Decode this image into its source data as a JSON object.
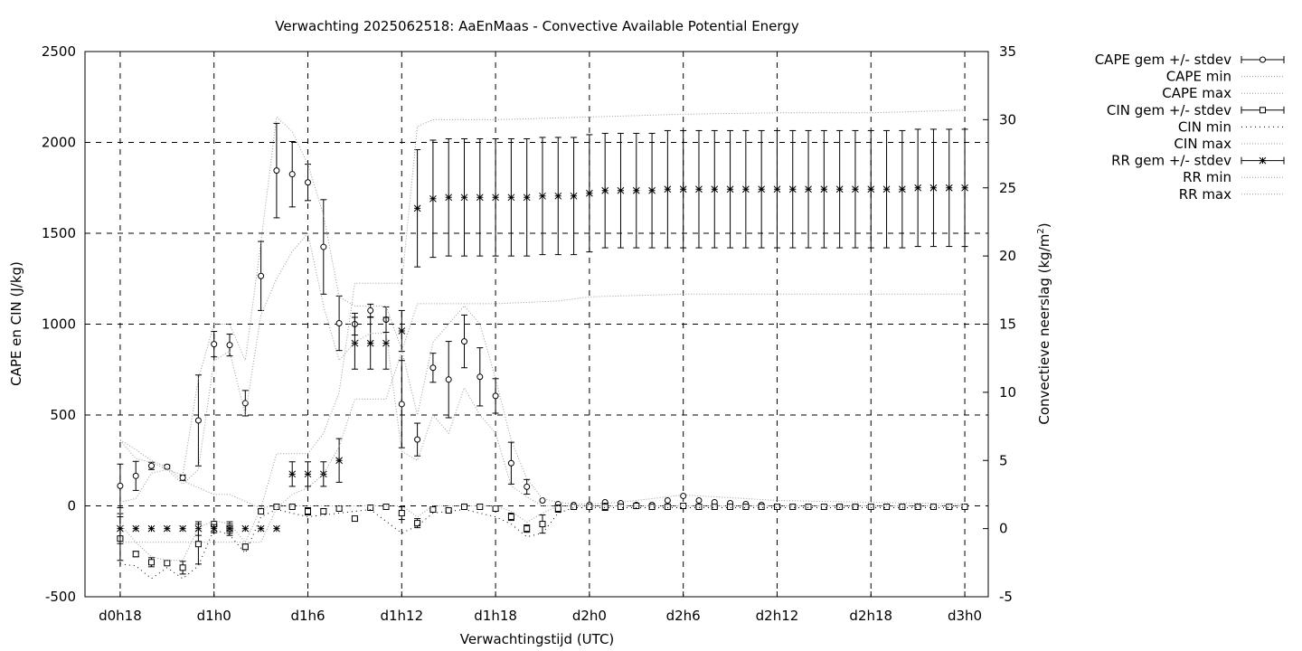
{
  "chart_data": {
    "type": "scatter",
    "title": "Verwachting 2025062518: AaEnMaas - Convective Available Potential Energy",
    "xlabel": "Verwachtingstijd (UTC)",
    "ylabel": "CAPE en CIN (J/kg)",
    "y2label_main": "Convectieve neerslag (kg/m",
    "y2label_sup": "2",
    "y2label_end": ")",
    "x_unit": "hours since d0h18",
    "xlim": [
      -2.25,
      55.5
    ],
    "ylim": [
      -500,
      2500
    ],
    "y2lim": [
      -5,
      35
    ],
    "grid": true,
    "legend_position": "outside-right",
    "x_ticks": [
      {
        "x": 0,
        "label": "d0h18"
      },
      {
        "x": 6,
        "label": "d1h0"
      },
      {
        "x": 12,
        "label": "d1h6"
      },
      {
        "x": 18,
        "label": "d1h12"
      },
      {
        "x": 24,
        "label": "d1h18"
      },
      {
        "x": 30,
        "label": "d2h0"
      },
      {
        "x": 36,
        "label": "d2h6"
      },
      {
        "x": 42,
        "label": "d2h12"
      },
      {
        "x": 48,
        "label": "d2h18"
      },
      {
        "x": 54,
        "label": "d3h0"
      }
    ],
    "y_ticks": [
      "-500",
      "0",
      "500",
      "1000",
      "1500",
      "2000",
      "2500"
    ],
    "y2_ticks": [
      "-5",
      "0",
      "5",
      "10",
      "15",
      "20",
      "25",
      "30",
      "35"
    ],
    "legend": [
      {
        "label": "CAPE gem +/- stdev",
        "style": "errbar-circle"
      },
      {
        "label": "CAPE min",
        "style": "dotted"
      },
      {
        "label": "CAPE max",
        "style": "dotted"
      },
      {
        "label": "CIN gem +/- stdev",
        "style": "errbar-square"
      },
      {
        "label": "CIN min",
        "style": "dotted-sparse"
      },
      {
        "label": "CIN max",
        "style": "dotted"
      },
      {
        "label": "RR gem +/- stdev",
        "style": "errbar-star"
      },
      {
        "label": "RR min",
        "style": "dotted"
      },
      {
        "label": "RR max",
        "style": "dotted"
      }
    ],
    "series": [
      {
        "name": "CAPE gem +/- stdev",
        "axis": "y",
        "marker": "circle",
        "x": [
          0,
          1,
          2,
          3,
          4,
          5,
          6,
          7,
          8,
          9,
          10,
          11,
          12,
          13,
          14,
          15,
          16,
          17,
          18,
          19,
          20,
          21,
          22,
          23,
          24,
          25,
          26,
          27,
          28,
          29,
          30,
          31,
          32,
          33,
          34,
          35,
          36,
          37,
          38,
          39,
          40,
          41
        ],
        "y": [
          110,
          165,
          220,
          215,
          155,
          470,
          890,
          885,
          565,
          1265,
          1845,
          1825,
          1780,
          1425,
          1005,
          1000,
          1075,
          1025,
          560,
          365,
          760,
          695,
          905,
          710,
          605,
          235,
          105,
          30,
          10,
          5,
          5,
          20,
          15,
          5,
          5,
          30,
          55,
          30,
          20,
          15,
          10,
          5
        ],
        "err": [
          120,
          80,
          20,
          10,
          15,
          250,
          70,
          60,
          70,
          190,
          260,
          180,
          100,
          260,
          150,
          60,
          35,
          70,
          240,
          90,
          80,
          210,
          145,
          160,
          95,
          115,
          40,
          0,
          0,
          0,
          0,
          0,
          0,
          0,
          0,
          0,
          0,
          0,
          0,
          0,
          0,
          0
        ]
      },
      {
        "name": "CIN gem +/- stdev",
        "axis": "y",
        "marker": "square",
        "x": [
          0,
          1,
          2,
          3,
          4,
          5,
          6,
          7,
          8,
          9,
          10,
          11,
          12,
          13,
          14,
          15,
          16,
          17,
          18,
          19,
          20,
          21,
          22,
          23,
          24,
          25,
          26,
          27,
          28,
          29,
          30,
          31,
          32,
          33,
          34,
          35,
          36,
          37,
          38,
          39,
          40,
          41,
          42,
          43,
          44,
          45,
          46,
          47,
          48,
          49,
          50,
          51,
          52,
          53,
          54
        ],
        "y": [
          -180,
          -265,
          -310,
          -315,
          -340,
          -210,
          -100,
          -125,
          -225,
          -30,
          -5,
          -5,
          -30,
          -30,
          -15,
          -70,
          -10,
          -5,
          -40,
          -95,
          -20,
          -25,
          -5,
          -5,
          -15,
          -60,
          -125,
          -100,
          -15,
          -5,
          -5,
          -5,
          -5,
          0,
          -5,
          -5,
          0,
          -5,
          -5,
          -5,
          -5,
          -5,
          -5,
          -5,
          -5,
          -5,
          -5,
          -5,
          -5,
          -5,
          -5,
          -5,
          -5,
          -5,
          -5
        ],
        "err": [
          120,
          15,
          25,
          10,
          35,
          110,
          15,
          25,
          15,
          10,
          0,
          0,
          20,
          15,
          10,
          5,
          0,
          0,
          35,
          25,
          5,
          10,
          0,
          0,
          10,
          20,
          20,
          50,
          20,
          0,
          0,
          20,
          5,
          0,
          0,
          0,
          0,
          0,
          0,
          0,
          0,
          0,
          0,
          0,
          0,
          0,
          0,
          0,
          0,
          0,
          0,
          0,
          0,
          0,
          0
        ]
      },
      {
        "name": "RR gem +/- stdev",
        "axis": "y2",
        "marker": "star",
        "x": [
          0,
          1,
          2,
          3,
          4,
          5,
          6,
          7,
          8,
          9,
          10,
          11,
          12,
          13,
          14,
          15,
          16,
          17,
          18,
          19,
          20,
          21,
          22,
          23,
          24,
          25,
          26,
          27,
          28,
          29,
          30,
          31,
          32,
          33,
          34,
          35,
          36,
          37,
          38,
          39,
          40,
          41,
          42,
          43,
          44,
          45,
          46,
          47,
          48,
          49,
          50,
          51,
          52,
          53,
          54
        ],
        "y": [
          0,
          0,
          0,
          0,
          0,
          0,
          0,
          0,
          0,
          0,
          0,
          4.0,
          4.0,
          4.0,
          5.0,
          13.6,
          13.6,
          13.6,
          14.5,
          23.5,
          24.2,
          24.3,
          24.3,
          24.3,
          24.3,
          24.3,
          24.3,
          24.4,
          24.4,
          24.4,
          24.6,
          24.8,
          24.8,
          24.8,
          24.8,
          24.9,
          24.9,
          24.9,
          24.9,
          24.9,
          24.9,
          24.9,
          24.9,
          24.9,
          24.9,
          24.9,
          24.9,
          24.9,
          24.9,
          24.9,
          24.9,
          25.0,
          25.0,
          25.0,
          25.0
        ],
        "err": [
          1.1,
          0,
          0,
          0,
          0,
          0.5,
          0.3,
          0.5,
          0,
          0,
          0,
          0.9,
          0.9,
          0.9,
          1.6,
          1.9,
          1.9,
          1.9,
          1.5,
          4.3,
          4.3,
          4.3,
          4.3,
          4.3,
          4.3,
          4.3,
          4.3,
          4.3,
          4.3,
          4.3,
          4.3,
          4.2,
          4.2,
          4.2,
          4.2,
          4.3,
          4.3,
          4.3,
          4.3,
          4.3,
          4.3,
          4.3,
          4.3,
          4.3,
          4.3,
          4.3,
          4.3,
          4.3,
          4.3,
          4.3,
          4.3,
          4.3,
          4.3,
          4.3,
          4.3
        ]
      },
      {
        "name": "CAPE max",
        "axis": "y",
        "line": "dotted",
        "x": [
          0,
          1,
          2,
          3,
          4,
          5,
          6,
          7,
          8,
          9,
          10,
          11,
          12,
          13,
          14,
          15,
          16,
          17,
          18,
          19,
          20,
          21,
          22,
          23,
          24,
          25,
          26,
          27,
          28,
          29,
          30,
          32,
          36,
          42,
          48,
          54
        ],
        "y": [
          360,
          260,
          240,
          200,
          170,
          700,
          1000,
          1000,
          800,
          1450,
          2140,
          2060,
          1880,
          1600,
          1150,
          1100,
          1100,
          1100,
          860,
          500,
          900,
          1000,
          1100,
          1000,
          700,
          360,
          150,
          40,
          20,
          10,
          10,
          20,
          60,
          30,
          20,
          10
        ]
      },
      {
        "name": "CAPE min",
        "axis": "y",
        "line": "dotted",
        "x": [
          0,
          1,
          2,
          3,
          4,
          5,
          6,
          7,
          8,
          9,
          10,
          11,
          12,
          13,
          14,
          15,
          16,
          17,
          18,
          19,
          20,
          21,
          22,
          23,
          24,
          25,
          26,
          27,
          28,
          30,
          36,
          42,
          48,
          54
        ],
        "y": [
          20,
          40,
          180,
          200,
          120,
          200,
          800,
          850,
          500,
          1050,
          1250,
          1400,
          1500,
          1100,
          800,
          900,
          950,
          950,
          300,
          250,
          500,
          400,
          650,
          500,
          400,
          110,
          50,
          0,
          0,
          0,
          0,
          0,
          0,
          0
        ]
      },
      {
        "name": "CIN min",
        "axis": "y",
        "line": "dotted-sparse",
        "x": [
          0,
          1,
          2,
          3,
          4,
          5,
          6,
          7,
          8,
          9,
          10,
          12,
          14,
          16,
          18,
          19,
          20,
          22,
          24,
          25,
          26,
          27,
          28,
          29,
          30,
          36,
          42,
          48,
          54
        ],
        "y": [
          -320,
          -330,
          -400,
          -340,
          -400,
          -330,
          -130,
          -160,
          -260,
          -60,
          -20,
          -60,
          -40,
          -20,
          -150,
          -110,
          -40,
          -20,
          -60,
          -100,
          -170,
          -150,
          -40,
          -10,
          -10,
          -10,
          -10,
          -10,
          -10
        ]
      },
      {
        "name": "CIN max",
        "axis": "y",
        "line": "dotted",
        "x": [
          0,
          1,
          2,
          3,
          4,
          5,
          6,
          7,
          8,
          9,
          10,
          12,
          14,
          16,
          18,
          19,
          20,
          22,
          24,
          25,
          26,
          27,
          28,
          29,
          30,
          36,
          42,
          48,
          54
        ],
        "y": [
          -100,
          -200,
          -280,
          -300,
          -300,
          -120,
          -80,
          -100,
          -200,
          -10,
          0,
          0,
          0,
          0,
          0,
          -60,
          0,
          0,
          0,
          -30,
          -90,
          -40,
          0,
          0,
          0,
          0,
          0,
          0,
          0
        ]
      },
      {
        "name": "RR max",
        "axis": "y2",
        "line": "dotted",
        "x": [
          0,
          1,
          2,
          3,
          4,
          5,
          6,
          7,
          8,
          9,
          10,
          11,
          12,
          13,
          14,
          15,
          16,
          17,
          18,
          19,
          20,
          21,
          24,
          30,
          36,
          42,
          48,
          54
        ],
        "y": [
          6.5,
          5.8,
          5.0,
          4.5,
          3.5,
          3.0,
          2.5,
          2.5,
          2.0,
          1.5,
          5.5,
          5.5,
          5.5,
          7.0,
          10.0,
          18.0,
          18.0,
          18.0,
          18.0,
          29.5,
          30.0,
          30.0,
          30.0,
          30.2,
          30.4,
          30.5,
          30.5,
          30.7
        ]
      },
      {
        "name": "RR min",
        "axis": "y2",
        "line": "dotted",
        "x": [
          0,
          1,
          2,
          3,
          4,
          5,
          6,
          7,
          8,
          9,
          10,
          11,
          12,
          13,
          14,
          15,
          16,
          17,
          18,
          19,
          20,
          24,
          28,
          30,
          36,
          42,
          48,
          54
        ],
        "y": [
          -1.0,
          -1.0,
          -1.0,
          -1.0,
          -1.0,
          -1.0,
          -1.0,
          -1.0,
          -1.0,
          -1.0,
          1.5,
          2.5,
          3.0,
          4.0,
          6.0,
          9.5,
          9.5,
          9.5,
          13.0,
          16.5,
          16.5,
          16.5,
          16.7,
          17.0,
          17.2,
          17.2,
          17.2,
          17.2
        ]
      }
    ]
  }
}
